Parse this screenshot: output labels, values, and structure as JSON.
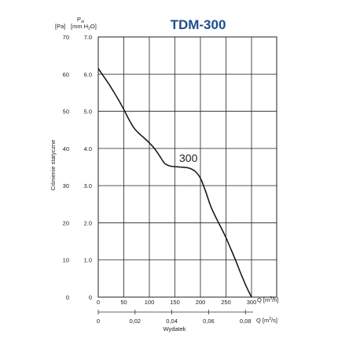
{
  "chart_data": {
    "type": "line",
    "title": "TDM-300",
    "ylabel": "Ciśnienie statyczne",
    "xlabel": "Wydatek",
    "y_units_pa": "[Pa]",
    "y_units_pressure_symbol": "P",
    "y_units_pressure_subscript": "st",
    "y_units_mmh2o": "[mm H",
    "y_units_mmh2o_sub": "2",
    "y_units_mmh2o_end": "O]",
    "x_units_m3h": "Q [m",
    "x_units_m3h_sup": "3",
    "x_units_m3h_end": "/h]",
    "x_units_m3s": "Q [m",
    "x_units_m3s_sup": "3",
    "x_units_m3s_end": "/s]",
    "xlim": [
      0,
      300
    ],
    "ylim_pa": [
      0,
      70
    ],
    "ylim_mmh2o": [
      0,
      7.0
    ],
    "x_ticks_m3h": [
      "0",
      "50",
      "100",
      "150",
      "200",
      "250",
      "300"
    ],
    "x_ticks_m3s": [
      "0",
      "0,02",
      "0,04",
      "0,06",
      "0,08"
    ],
    "x_ticks_m3s_values": [
      0,
      0.02,
      0.04,
      0.06,
      0.08
    ],
    "y_ticks_pa": [
      "0",
      "10",
      "20",
      "30",
      "40",
      "50",
      "60",
      "70"
    ],
    "y_ticks_mmh2o": [
      "0",
      "1.0",
      "2.0",
      "3.0",
      "4.0",
      "5.0",
      "6.0",
      "7.0"
    ],
    "grid": true,
    "series": [
      {
        "name": "300",
        "x": [
          0,
          10,
          20,
          30,
          40,
          50,
          60,
          70,
          80,
          90,
          100,
          110,
          120,
          130,
          140,
          150,
          160,
          170,
          180,
          190,
          200,
          210,
          220,
          230,
          240,
          250,
          260,
          270,
          280,
          290,
          300
        ],
        "y": [
          61.5,
          59.5,
          57.5,
          55.3,
          53.0,
          50.5,
          47.8,
          45.5,
          44.0,
          42.8,
          41.5,
          40.0,
          38.0,
          36.0,
          35.3,
          35.1,
          35.0,
          34.9,
          34.6,
          33.8,
          32.0,
          28.5,
          24.5,
          21.5,
          18.8,
          16.0,
          12.8,
          9.5,
          6.0,
          2.8,
          0.0
        ]
      }
    ]
  }
}
